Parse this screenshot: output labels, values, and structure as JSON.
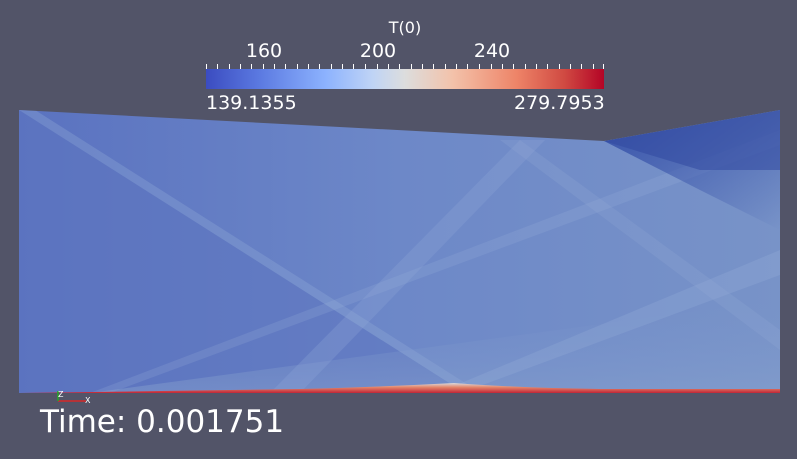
{
  "scalar_bar": {
    "title": "T(0)",
    "ticks": [
      "160",
      "200",
      "240"
    ],
    "range_min": "139.1355",
    "range_max": "279.7953",
    "colormap": "cool-to-warm",
    "colors": {
      "low": "#3b4cc0",
      "mid": "#dcdddd",
      "high": "#b40426"
    }
  },
  "axes": {
    "x_label": "X",
    "z_label": "Z"
  },
  "time": {
    "text": "Time: 0.001751"
  },
  "background_color": "#525468"
}
